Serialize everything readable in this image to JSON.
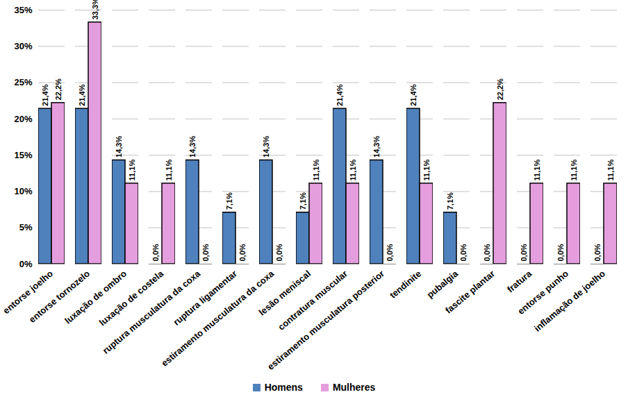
{
  "chart_data": {
    "type": "bar",
    "categories": [
      "entorse joelho",
      "entorse tornozelo",
      "luxação de ombro",
      "luxação de costela",
      "ruptura musculatura da coxa",
      "ruptura ligamentar",
      "estiramento musculatura da coxa",
      "lesão meniscal",
      "contratura muscular",
      "estiramento musculatura posterior",
      "tendinite",
      "pubalgia",
      "fascite plantar",
      "fratura",
      "entorse punho",
      "inflamação de joelho"
    ],
    "series": [
      {
        "name": "Homens",
        "color": "#4f81bd",
        "values": [
          21.4,
          21.4,
          14.3,
          0,
          14.3,
          7.1,
          14.3,
          7.1,
          21.4,
          14.3,
          21.4,
          7.1,
          0,
          0,
          0,
          0
        ],
        "value_labels": [
          "21,4%",
          "21,4%",
          "14,3%",
          "0,0%",
          "14,3%",
          "7,1%",
          "14,3%",
          "7,1%",
          "21,4%",
          "14,3%",
          "21,4%",
          "7,1%",
          "0,0%",
          "0,0%",
          "0,0%",
          "0,0%"
        ]
      },
      {
        "name": "Mulheres",
        "color": "#e59edd",
        "values": [
          22.2,
          33.3,
          11.1,
          11.1,
          0,
          0,
          0,
          11.1,
          11.1,
          0,
          11.1,
          0,
          22.2,
          11.1,
          11.1,
          11.1
        ],
        "value_labels": [
          "22,2%",
          "33,3%",
          "11,1%",
          "11,1%",
          "0,0%",
          "0,0%",
          "0,0%",
          "11,1%",
          "11,1%",
          "0,0%",
          "11,1%",
          "0,0%",
          "22,2%",
          "11,1%",
          "11,1%",
          "11,1%"
        ]
      }
    ],
    "ylim": [
      0,
      35
    ],
    "yticks": [
      {
        "value": 0,
        "label": "0%"
      },
      {
        "value": 5,
        "label": "5%"
      },
      {
        "value": 10,
        "label": "10%"
      },
      {
        "value": 15,
        "label": "15%"
      },
      {
        "value": 20,
        "label": "20%"
      },
      {
        "value": 25,
        "label": "25%"
      },
      {
        "value": 30,
        "label": "30%"
      },
      {
        "value": 35,
        "label": "35%"
      }
    ],
    "grid": true,
    "data_labels": true,
    "legend": "bottom"
  }
}
